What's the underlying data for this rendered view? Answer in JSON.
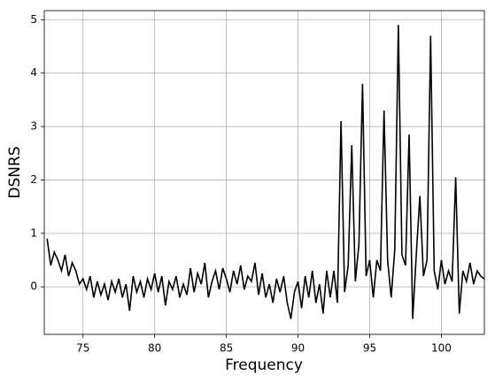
{
  "chart_data": {
    "type": "line",
    "x_label": "Frequency",
    "y_label": "DSNRS",
    "x": [
      72.5,
      72.75,
      73,
      73.25,
      73.5,
      73.75,
      74,
      74.25,
      74.5,
      74.75,
      75,
      75.25,
      75.5,
      75.75,
      76,
      76.25,
      76.5,
      76.75,
      77,
      77.25,
      77.5,
      77.75,
      78,
      78.25,
      78.5,
      78.75,
      79,
      79.25,
      79.5,
      79.75,
      80,
      80.25,
      80.5,
      80.75,
      81,
      81.25,
      81.5,
      81.75,
      82,
      82.25,
      82.5,
      82.75,
      83,
      83.25,
      83.5,
      83.75,
      84,
      84.25,
      84.5,
      84.75,
      85,
      85.25,
      85.5,
      85.75,
      86,
      86.25,
      86.5,
      86.75,
      87,
      87.25,
      87.5,
      87.75,
      88,
      88.25,
      88.5,
      88.75,
      89,
      89.25,
      89.5,
      89.75,
      90,
      90.25,
      90.5,
      90.75,
      91,
      91.25,
      91.5,
      91.75,
      92,
      92.25,
      92.5,
      92.75,
      93,
      93.25,
      93.5,
      93.75,
      94,
      94.25,
      94.5,
      94.75,
      95,
      95.25,
      95.5,
      95.75,
      96,
      96.25,
      96.5,
      96.75,
      97,
      97.25,
      97.5,
      97.75,
      98,
      98.25,
      98.5,
      98.75,
      99,
      99.25,
      99.5,
      99.75,
      100,
      100.25,
      100.5,
      100.75,
      101,
      101.25,
      101.5,
      101.75,
      102,
      102.25,
      102.5,
      102.75,
      103
    ],
    "series": [
      {
        "color": "#000000",
        "values": [
          0.9,
          0.4,
          0.65,
          0.5,
          0.3,
          0.6,
          0.2,
          0.45,
          0.3,
          0.05,
          0.15,
          -0.05,
          0.2,
          -0.2,
          0.1,
          -0.15,
          0.05,
          -0.25,
          0.1,
          -0.1,
          0.15,
          -0.2,
          0.05,
          -0.45,
          0.2,
          -0.1,
          0.1,
          -0.2,
          0.15,
          -0.05,
          0.25,
          -0.1,
          0.2,
          -0.35,
          0.1,
          -0.05,
          0.2,
          -0.2,
          0.05,
          -0.15,
          0.35,
          -0.1,
          0.25,
          0.05,
          0.45,
          -0.2,
          0.1,
          0.3,
          -0.05,
          0.35,
          0.15,
          -0.1,
          0.3,
          0.05,
          0.4,
          -0.05,
          0.2,
          0.1,
          0.45,
          -0.15,
          0.25,
          -0.2,
          0.05,
          -0.3,
          0.15,
          -0.1,
          0.2,
          -0.3,
          -0.6,
          -0.1,
          0.1,
          -0.4,
          0.2,
          -0.2,
          0.3,
          -0.3,
          0.05,
          -0.5,
          0.3,
          -0.2,
          0.3,
          -0.3,
          3.1,
          -0.1,
          0.4,
          2.65,
          0.1,
          0.8,
          3.8,
          0.2,
          0.5,
          -0.2,
          0.5,
          0.3,
          3.3,
          0.5,
          -0.2,
          0.7,
          4.9,
          0.6,
          0.4,
          2.85,
          -0.6,
          0.6,
          1.7,
          0.2,
          0.5,
          4.7,
          0.3,
          -0.05,
          0.5,
          0.05,
          0.3,
          0.1,
          2.05,
          -0.5,
          0.3,
          0.1,
          0.45,
          0.05,
          0.3,
          0.2,
          0.15
        ]
      }
    ],
    "xlim": [
      72.3,
      103.0
    ],
    "ylim": [
      -0.89,
      5.17
    ],
    "xticks": [
      75,
      80,
      85,
      90,
      95,
      100
    ],
    "yticks": [
      0,
      1,
      2,
      3,
      4,
      5
    ],
    "grid": true
  }
}
